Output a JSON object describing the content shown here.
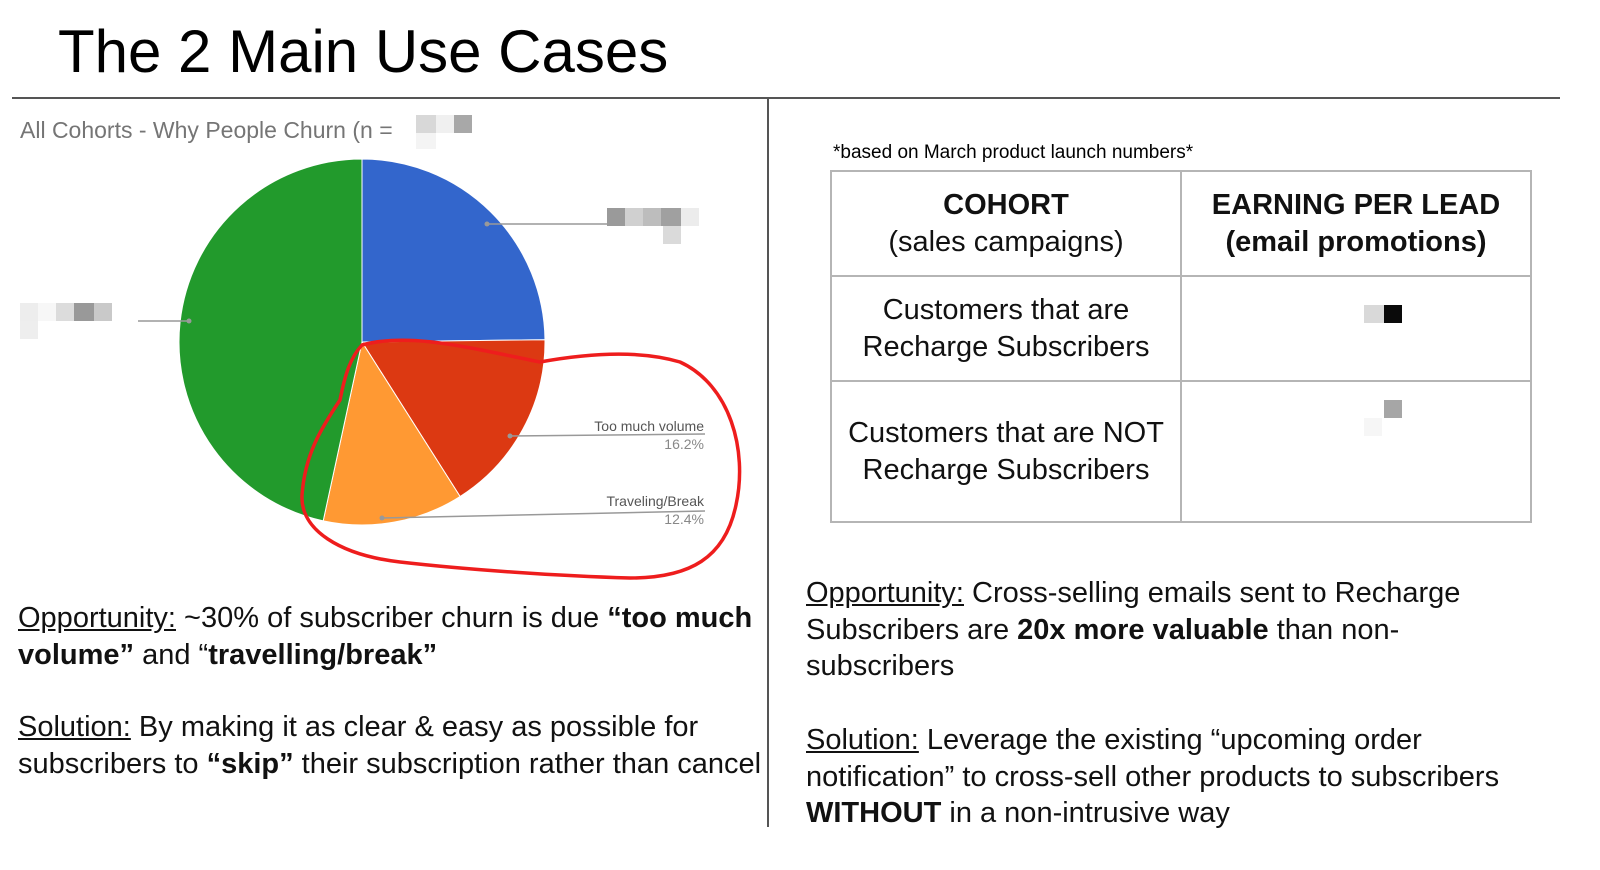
{
  "slide": {
    "title": "The 2 Main Use Cases"
  },
  "left": {
    "chart_title": "All Cohorts - Why People Churn (n = ",
    "opportunity": {
      "label": "Opportunity:",
      "text1": " ~30% of subscriber churn is due ",
      "bold1": "“too much volume”",
      "text2": " and “",
      "bold2": "travelling/break”"
    },
    "solution": {
      "label": "Solution:",
      "text1": " By making it as clear & easy as possible for subscribers to ",
      "bold1": "“skip”",
      "text2": " their subscription rather than cancel"
    }
  },
  "chart_data": {
    "type": "pie",
    "title": "All Cohorts - Why People Churn (n = ",
    "slices": [
      {
        "label": "",
        "value": 24.8,
        "color": "#3366cc"
      },
      {
        "label": "Too much volume",
        "value": 16.2,
        "pct_label": "16.2%",
        "color": "#dc3912"
      },
      {
        "label": "Traveling/Break",
        "value": 12.4,
        "pct_label": "12.4%",
        "color": "#ff9933"
      },
      {
        "label": "",
        "value": 46.6,
        "color": "#229a2c"
      }
    ],
    "annotation": "red hand-drawn circle around Too much volume and Traveling/Break"
  },
  "right": {
    "footnote": "*based on March product launch numbers*",
    "table": {
      "headers": [
        {
          "main": "COHORT",
          "sub": "(sales campaigns)"
        },
        {
          "main": "EARNING PER LEAD",
          "sub": "(email promotions)"
        }
      ],
      "rows": [
        {
          "cohort": "Customers that are Recharge Subscribers",
          "earning": ""
        },
        {
          "cohort": "Customers that are NOT Recharge Subscribers",
          "earning": ""
        }
      ]
    },
    "opportunity": {
      "label": "Opportunity:",
      "text1": " Cross-selling emails sent to Recharge Subscribers are ",
      "bold1": "20x more valuable",
      "text2": " than non-subscribers"
    },
    "solution": {
      "label": "Solution:",
      "text1": " Leverage the existing “upcoming order notification” to cross-sell other products to subscribers ",
      "bold1": "WITHOUT",
      "text2": " in a non-intrusive way"
    }
  }
}
